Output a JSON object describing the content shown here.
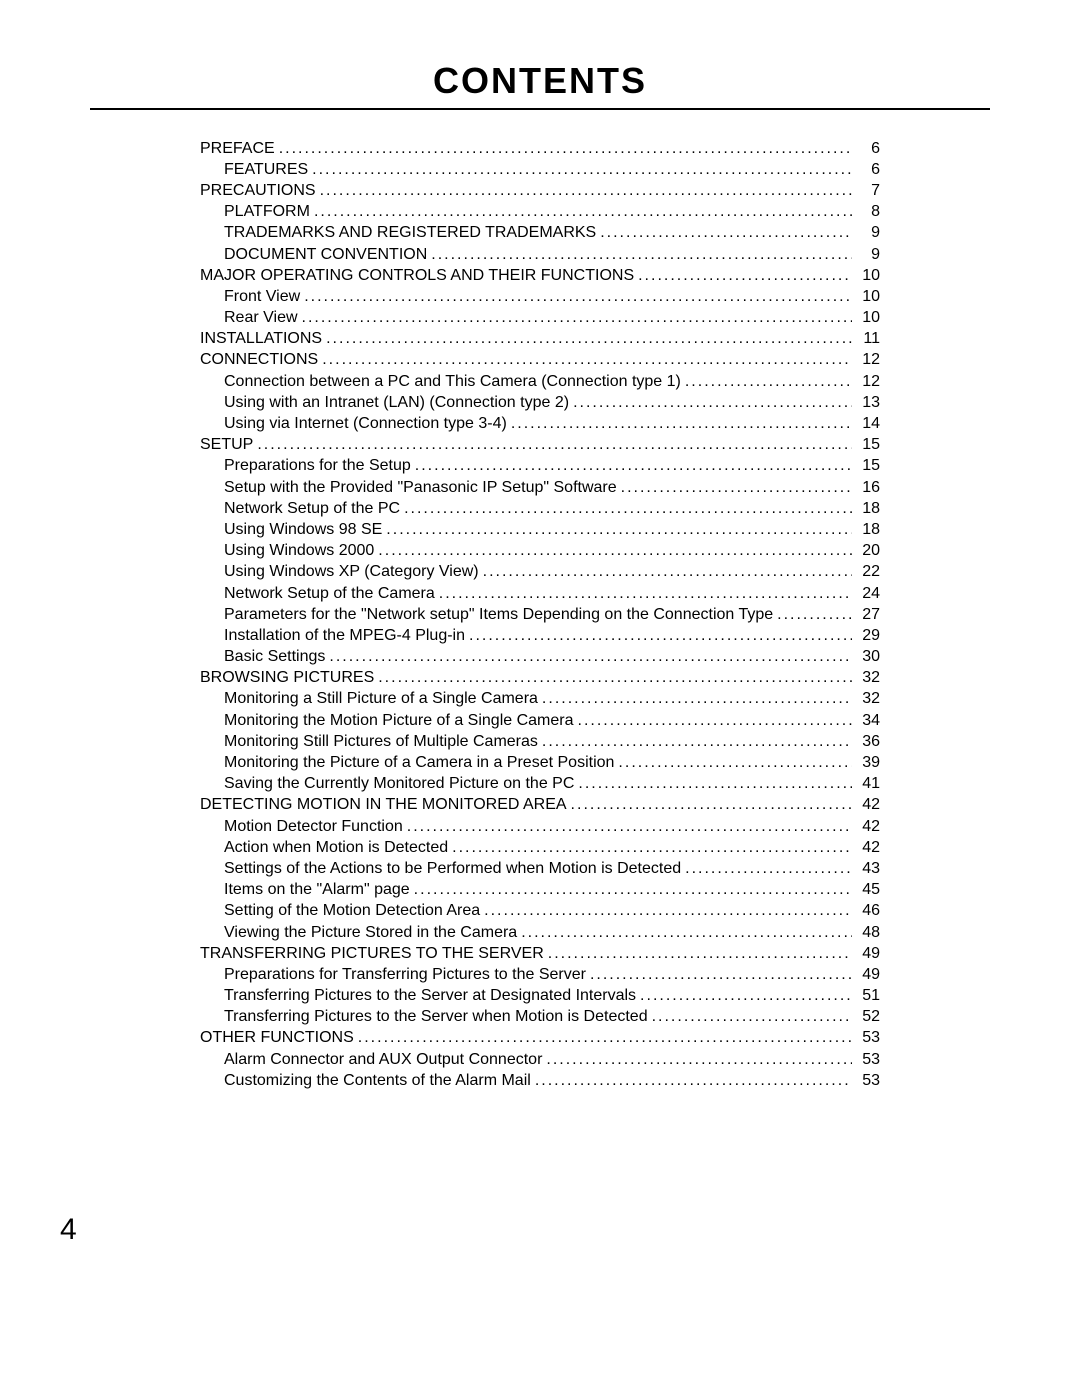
{
  "title": "CONTENTS",
  "page_number": "4",
  "typography": {
    "title_font_size_pt": 27,
    "body_font_size_pt": 12,
    "page_number_font_size_pt": 22,
    "text_color": "#000000",
    "background_color": "#ffffff",
    "rule_color": "#000000"
  },
  "toc": [
    {
      "label": "PREFACE",
      "page": "6",
      "level": 0
    },
    {
      "label": "FEATURES",
      "page": "6",
      "level": 1
    },
    {
      "label": "PRECAUTIONS",
      "page": "7",
      "level": 0
    },
    {
      "label": "PLATFORM",
      "page": "8",
      "level": 1
    },
    {
      "label": "TRADEMARKS AND REGISTERED TRADEMARKS",
      "page": "9",
      "level": 1
    },
    {
      "label": "DOCUMENT CONVENTION",
      "page": "9",
      "level": 1
    },
    {
      "label": "MAJOR OPERATING CONTROLS AND THEIR FUNCTIONS",
      "page": "10",
      "level": 0
    },
    {
      "label": "Front View",
      "page": "10",
      "level": 1
    },
    {
      "label": "Rear View",
      "page": "10",
      "level": 1
    },
    {
      "label": "INSTALLATIONS",
      "page": "11",
      "level": 0
    },
    {
      "label": "CONNECTIONS",
      "page": "12",
      "level": 0
    },
    {
      "label": "Connection between a PC and This Camera (Connection type 1)",
      "page": "12",
      "level": 1
    },
    {
      "label": "Using with an Intranet (LAN) (Connection type 2)",
      "page": "13",
      "level": 1
    },
    {
      "label": "Using via Internet (Connection type 3-4)",
      "page": "14",
      "level": 1
    },
    {
      "label": "SETUP",
      "page": "15",
      "level": 0
    },
    {
      "label": "Preparations for the Setup",
      "page": "15",
      "level": 1
    },
    {
      "label": "Setup with the Provided \"Panasonic IP Setup\" Software",
      "page": "16",
      "level": 1
    },
    {
      "label": "Network Setup of the PC",
      "page": "18",
      "level": 1
    },
    {
      "label": "Using Windows 98 SE",
      "page": "18",
      "level": 1
    },
    {
      "label": "Using Windows 2000",
      "page": "20",
      "level": 1
    },
    {
      "label": "Using Windows XP (Category View)",
      "page": "22",
      "level": 1
    },
    {
      "label": "Network Setup of the Camera",
      "page": "24",
      "level": 1
    },
    {
      "label": "Parameters for the \"Network setup\" Items Depending on the Connection Type",
      "page": "27",
      "level": 1
    },
    {
      "label": "Installation of the MPEG-4 Plug-in",
      "page": "29",
      "level": 1
    },
    {
      "label": "Basic Settings",
      "page": "30",
      "level": 1
    },
    {
      "label": "BROWSING PICTURES",
      "page": "32",
      "level": 0
    },
    {
      "label": "Monitoring a Still Picture of a Single Camera",
      "page": "32",
      "level": 1
    },
    {
      "label": "Monitoring the Motion Picture of a Single Camera",
      "page": "34",
      "level": 1
    },
    {
      "label": "Monitoring Still Pictures of Multiple Cameras",
      "page": "36",
      "level": 1
    },
    {
      "label": "Monitoring the Picture of a Camera in a Preset Position",
      "page": "39",
      "level": 1
    },
    {
      "label": "Saving the Currently Monitored Picture on the PC",
      "page": "41",
      "level": 1
    },
    {
      "label": "DETECTING MOTION IN THE MONITORED AREA",
      "page": "42",
      "level": 0
    },
    {
      "label": "Motion Detector Function",
      "page": "42",
      "level": 1
    },
    {
      "label": "Action when Motion is Detected",
      "page": "42",
      "level": 1
    },
    {
      "label": "Settings of the Actions to be Performed when Motion is Detected",
      "page": "43",
      "level": 1
    },
    {
      "label": "Items on the \"Alarm\" page",
      "page": "45",
      "level": 1
    },
    {
      "label": "Setting of the Motion Detection Area",
      "page": "46",
      "level": 1
    },
    {
      "label": "Viewing the Picture Stored in the Camera",
      "page": "48",
      "level": 1
    },
    {
      "label": "TRANSFERRING PICTURES TO THE SERVER",
      "page": "49",
      "level": 0
    },
    {
      "label": "Preparations for Transferring Pictures to the Server",
      "page": "49",
      "level": 1
    },
    {
      "label": "Transferring Pictures to the Server at Designated Intervals",
      "page": "51",
      "level": 1
    },
    {
      "label": "Transferring Pictures to the Server when Motion is Detected",
      "page": "52",
      "level": 1
    },
    {
      "label": "OTHER FUNCTIONS",
      "page": "53",
      "level": 0
    },
    {
      "label": "Alarm Connector and AUX Output Connector",
      "page": "53",
      "level": 1
    },
    {
      "label": "Customizing the Contents of the Alarm Mail",
      "page": "53",
      "level": 1
    }
  ]
}
